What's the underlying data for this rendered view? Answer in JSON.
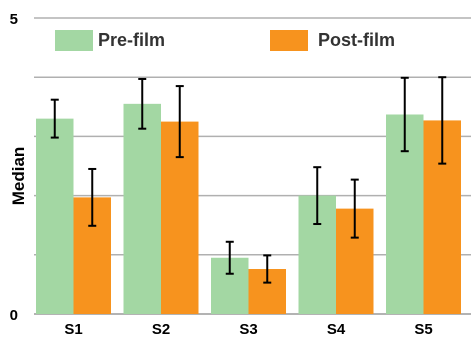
{
  "chart_data": {
    "type": "bar",
    "title": "",
    "xlabel": "",
    "ylabel": "Median",
    "ylim": [
      0,
      5
    ],
    "y_tick_labels": [
      "0",
      "5"
    ],
    "gridlines": [
      1,
      2,
      3,
      4,
      5
    ],
    "grid": true,
    "legend_position": "top",
    "categories": [
      "S1",
      "S2",
      "S3",
      "S4",
      "S5"
    ],
    "series": [
      {
        "name": "Pre-film",
        "color": "#a3d7a3",
        "values": [
          3.3,
          3.55,
          0.95,
          2.0,
          3.37
        ],
        "error": [
          0.32,
          0.42,
          0.27,
          0.48,
          0.62
        ]
      },
      {
        "name": "Post-film",
        "color": "#f7931e",
        "values": [
          1.97,
          3.25,
          0.76,
          1.78,
          3.27
        ],
        "error": [
          0.48,
          0.6,
          0.23,
          0.49,
          0.73
        ]
      }
    ],
    "error_bar_color": "#000000"
  }
}
